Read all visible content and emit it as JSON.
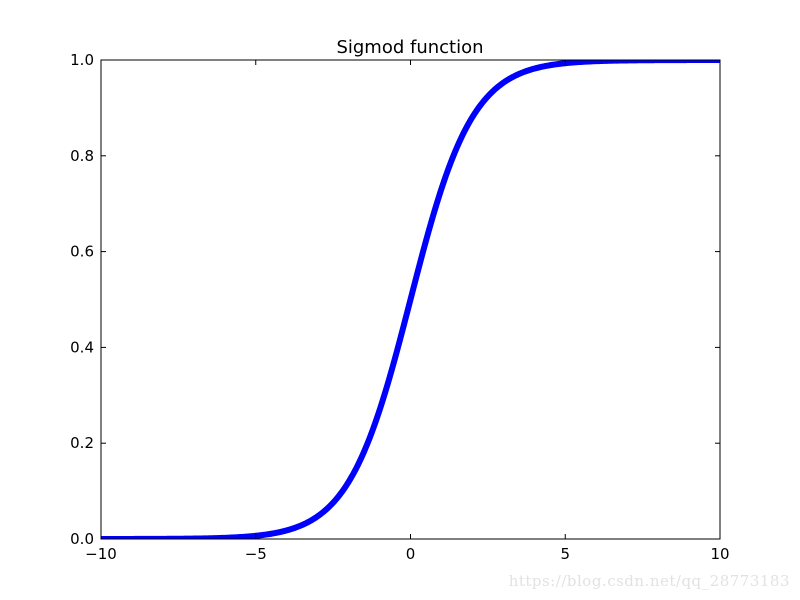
{
  "chart_data": {
    "type": "line",
    "title": "Sigmod function",
    "xlabel": "",
    "ylabel": "",
    "xlim": [
      -10,
      10
    ],
    "ylim": [
      0.0,
      1.0
    ],
    "x_ticks": [
      -10,
      -5,
      0,
      5,
      10
    ],
    "x_tick_labels": [
      "−10",
      "−5",
      "0",
      "5",
      "10"
    ],
    "y_ticks": [
      0.0,
      0.2,
      0.4,
      0.6,
      0.8,
      1.0
    ],
    "y_tick_labels": [
      "0.0",
      "0.2",
      "0.4",
      "0.6",
      "0.8",
      "1.0"
    ],
    "grid": false,
    "legend": "none",
    "series": [
      {
        "color": "#0000ff",
        "x": [
          -10,
          -9,
          -8,
          -7,
          -6,
          -5,
          -4.5,
          -4,
          -3.5,
          -3,
          -2.5,
          -2,
          -1.5,
          -1,
          -0.5,
          0,
          0.5,
          1,
          1.5,
          2,
          2.5,
          3,
          3.5,
          4,
          4.5,
          5,
          6,
          7,
          8,
          9,
          10
        ],
        "y": [
          0.0,
          0.0001,
          0.0003,
          0.0009,
          0.0025,
          0.0067,
          0.011,
          0.018,
          0.0293,
          0.0474,
          0.0759,
          0.1192,
          0.1824,
          0.2689,
          0.3775,
          0.5,
          0.6225,
          0.7311,
          0.8176,
          0.8808,
          0.9241,
          0.9526,
          0.9707,
          0.982,
          0.989,
          0.9933,
          0.9975,
          0.9991,
          0.9997,
          0.9999,
          1.0
        ]
      }
    ]
  },
  "watermark": "https://blog.csdn.net/qq_28773183"
}
